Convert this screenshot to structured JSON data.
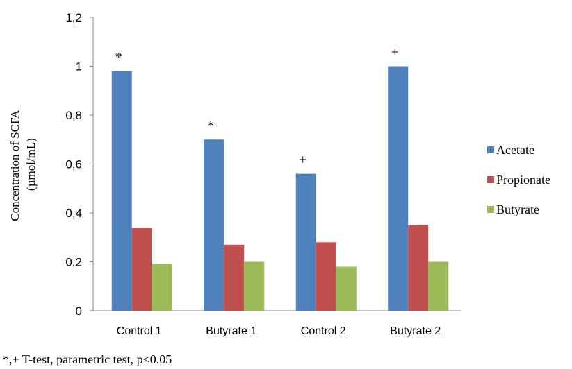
{
  "chart_data": {
    "type": "bar",
    "categories": [
      "Control 1",
      "Butyrate 1",
      "Control 2",
      "Butyrate 2"
    ],
    "series": [
      {
        "name": "Acetate",
        "color": "#4F81BD",
        "values": [
          0.98,
          0.7,
          0.56,
          1.0
        ]
      },
      {
        "name": "Propionate",
        "color": "#C0504D",
        "values": [
          0.34,
          0.27,
          0.28,
          0.35
        ]
      },
      {
        "name": "Butyrate",
        "color": "#9BBB59",
        "values": [
          0.19,
          0.2,
          0.18,
          0.2
        ]
      }
    ],
    "annotations": [
      "*",
      "*",
      "+",
      "+"
    ],
    "ylabel_line1": "Concentration of SCFA",
    "ylabel_line2": "(µmol/mL)",
    "ylim": [
      0,
      1.2
    ],
    "yticks": [
      0,
      0.2,
      0.4,
      0.6,
      0.8,
      1,
      1.2
    ],
    "ytick_labels": [
      "0",
      "0,2",
      "0,4",
      "0,6",
      "0,8",
      "1",
      "1,2"
    ],
    "legend_position": "right",
    "grid": false,
    "footnote": "*,+ T-test, parametric test, p<0.05"
  }
}
